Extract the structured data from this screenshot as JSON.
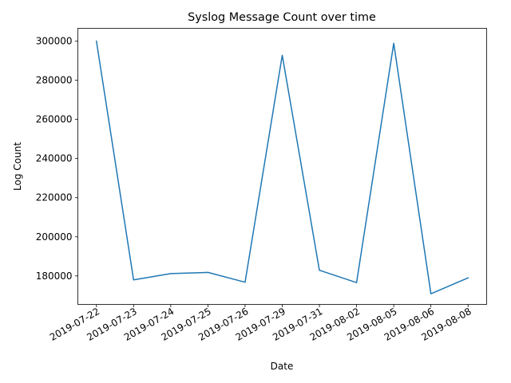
{
  "chart_data": {
    "type": "line",
    "title": "Syslog Message Count over time",
    "xlabel": "Date",
    "ylabel": "Log Count",
    "categories": [
      "2019-07-22",
      "2019-07-23",
      "2019-07-24",
      "2019-07-25",
      "2019-07-26",
      "2019-07-29",
      "2019-07-31",
      "2019-08-02",
      "2019-08-05",
      "2019-08-06",
      "2019-08-08"
    ],
    "series": [
      {
        "color": "#1f77b4",
        "values": [
          300000,
          178000,
          181200,
          181800,
          176800,
          292800,
          182900,
          176600,
          298900,
          170900,
          179000
        ]
      }
    ],
    "ylim": [
      165450,
      306550
    ],
    "yticks": [
      180000,
      200000,
      220000,
      240000,
      260000,
      280000,
      300000
    ],
    "ytick_labels": [
      "180000",
      "200000",
      "220000",
      "240000",
      "260000",
      "280000",
      "300000"
    ],
    "grid": false,
    "legend": null
  }
}
